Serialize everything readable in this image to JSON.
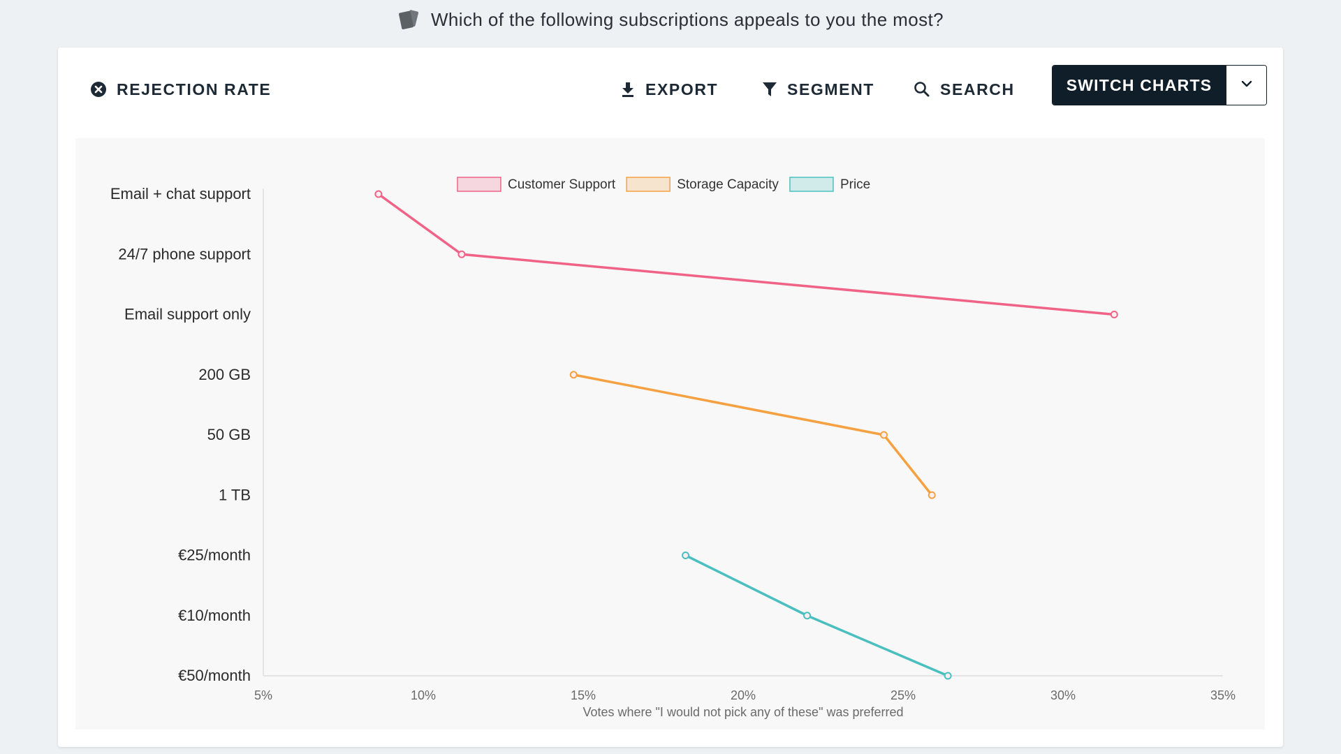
{
  "header": {
    "question": "Which of the following subscriptions appeals to you the most?",
    "question_icon": "cards-icon"
  },
  "toolbar": {
    "rejection_label": "REJECTION RATE",
    "export_label": "EXPORT",
    "segment_label": "SEGMENT",
    "search_label": "SEARCH",
    "switch_label": "SWITCH CHARTS"
  },
  "colors": {
    "customer_support": "#f06387",
    "storage_capacity": "#f5a142",
    "price": "#4bbfbf",
    "button_dark": "#0f1e29"
  },
  "chart_data": {
    "type": "line",
    "orientation": "horizontal",
    "categories": [
      "Email + chat support",
      "24/7 phone support",
      "Email support only",
      "200 GB",
      "50 GB",
      "1 TB",
      "€25/month",
      "€10/month",
      "€50/month"
    ],
    "series": [
      {
        "name": "Customer Support",
        "color": "#f06387",
        "points": [
          {
            "y": "Email + chat support",
            "x": 8.6
          },
          {
            "y": "24/7 phone support",
            "x": 11.2
          },
          {
            "y": "Email support only",
            "x": 31.6
          }
        ]
      },
      {
        "name": "Storage Capacity",
        "color": "#f5a142",
        "points": [
          {
            "y": "200 GB",
            "x": 14.7
          },
          {
            "y": "50 GB",
            "x": 24.4
          },
          {
            "y": "1 TB",
            "x": 25.9
          }
        ]
      },
      {
        "name": "Price",
        "color": "#4bbfbf",
        "points": [
          {
            "y": "€25/month",
            "x": 18.2
          },
          {
            "y": "€10/month",
            "x": 22.0
          },
          {
            "y": "€50/month",
            "x": 26.4
          }
        ]
      }
    ],
    "xlabel": "Votes where \"I would not pick any of these\" was preferred",
    "ylabel": "",
    "xlim": [
      5,
      35
    ],
    "xticks": [
      "5%",
      "10%",
      "15%",
      "20%",
      "25%",
      "30%",
      "35%"
    ],
    "legend_position": "top-center",
    "grid": false
  }
}
